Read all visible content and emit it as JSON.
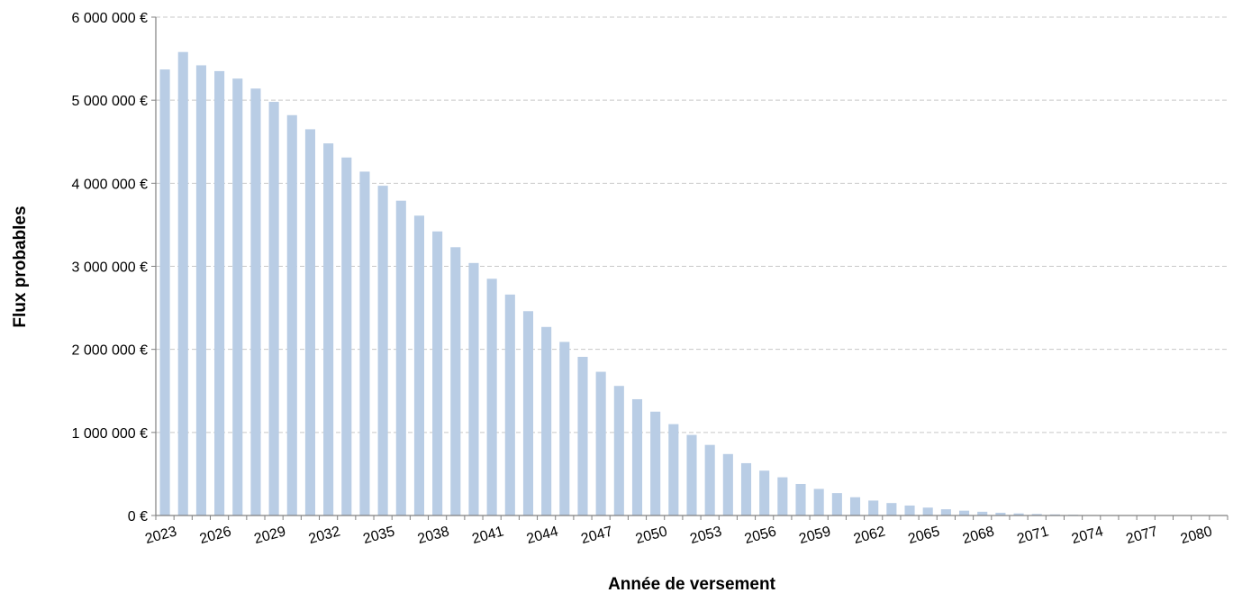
{
  "chart_data": {
    "type": "bar",
    "xlabel": "Année de versement",
    "ylabel": "Flux probables",
    "ylim": [
      0,
      6000000
    ],
    "y_ticks": [
      0,
      1000000,
      2000000,
      3000000,
      4000000,
      5000000,
      6000000
    ],
    "y_tick_labels": [
      "0 €",
      "1 000 000 €",
      "2 000 000 €",
      "3 000 000 €",
      "4 000 000 €",
      "5 000 000 €",
      "6 000 000 €"
    ],
    "x_tick_labels": [
      "2023",
      "2026",
      "2029",
      "2032",
      "2035",
      "2038",
      "2041",
      "2044",
      "2047",
      "2050",
      "2053",
      "2056",
      "2059",
      "2062",
      "2065",
      "2068",
      "2071",
      "2074",
      "2077",
      "2080"
    ],
    "grid": true,
    "bar_color": "#b9cde5",
    "categories": [
      "2023",
      "2024",
      "2025",
      "2026",
      "2027",
      "2028",
      "2029",
      "2030",
      "2031",
      "2032",
      "2033",
      "2034",
      "2035",
      "2036",
      "2037",
      "2038",
      "2039",
      "2040",
      "2041",
      "2042",
      "2043",
      "2044",
      "2045",
      "2046",
      "2047",
      "2048",
      "2049",
      "2050",
      "2051",
      "2052",
      "2053",
      "2054",
      "2055",
      "2056",
      "2057",
      "2058",
      "2059",
      "2060",
      "2061",
      "2062",
      "2063",
      "2064",
      "2065",
      "2066",
      "2067",
      "2068",
      "2069",
      "2070",
      "2071",
      "2072",
      "2073",
      "2074",
      "2075",
      "2076",
      "2077",
      "2078",
      "2079",
      "2080",
      "2081"
    ],
    "values": [
      5370000,
      5580000,
      5420000,
      5350000,
      5260000,
      5140000,
      4980000,
      4820000,
      4650000,
      4480000,
      4310000,
      4140000,
      3970000,
      3790000,
      3610000,
      3420000,
      3230000,
      3040000,
      2850000,
      2660000,
      2460000,
      2270000,
      2090000,
      1910000,
      1730000,
      1560000,
      1400000,
      1250000,
      1100000,
      970000,
      850000,
      740000,
      630000,
      540000,
      460000,
      380000,
      320000,
      270000,
      220000,
      180000,
      150000,
      120000,
      95000,
      75000,
      58000,
      45000,
      33000,
      25000,
      18000,
      13000,
      9000,
      6000,
      4000,
      3000,
      2000,
      1500,
      1000,
      800,
      500
    ]
  }
}
